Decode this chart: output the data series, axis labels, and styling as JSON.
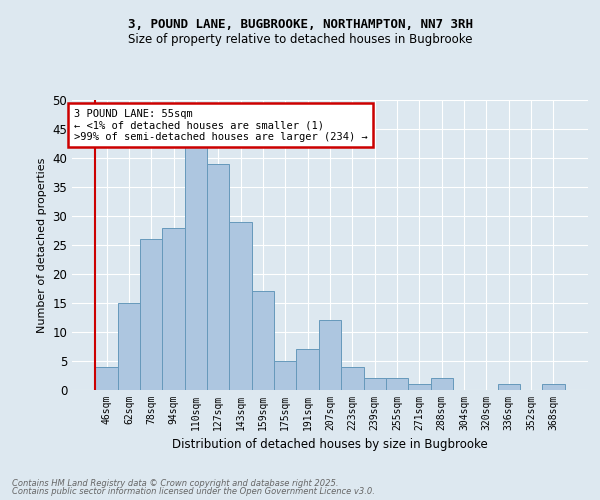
{
  "title1": "3, POUND LANE, BUGBROOKE, NORTHAMPTON, NN7 3RH",
  "title2": "Size of property relative to detached houses in Bugbrooke",
  "xlabel": "Distribution of detached houses by size in Bugbrooke",
  "ylabel": "Number of detached properties",
  "categories": [
    "46sqm",
    "62sqm",
    "78sqm",
    "94sqm",
    "110sqm",
    "127sqm",
    "143sqm",
    "159sqm",
    "175sqm",
    "191sqm",
    "207sqm",
    "223sqm",
    "239sqm",
    "255sqm",
    "271sqm",
    "288sqm",
    "304sqm",
    "320sqm",
    "336sqm",
    "352sqm",
    "368sqm"
  ],
  "values": [
    4,
    15,
    26,
    28,
    42,
    39,
    29,
    17,
    5,
    7,
    12,
    4,
    2,
    2,
    1,
    2,
    0,
    0,
    1,
    0,
    1
  ],
  "bar_color": "#adc6e0",
  "bar_edge_color": "#6699bb",
  "background_color": "#dde8f0",
  "grid_color": "#ffffff",
  "annotation_box_text": "3 POUND LANE: 55sqm\n← <1% of detached houses are smaller (1)\n>99% of semi-detached houses are larger (234) →",
  "annotation_box_color": "#ffffff",
  "annotation_box_edge_color": "#cc0000",
  "vline_color": "#cc0000",
  "ylim_max": 50,
  "yticks": [
    0,
    5,
    10,
    15,
    20,
    25,
    30,
    35,
    40,
    45,
    50
  ],
  "footer1": "Contains HM Land Registry data © Crown copyright and database right 2025.",
  "footer2": "Contains public sector information licensed under the Open Government Licence v3.0."
}
